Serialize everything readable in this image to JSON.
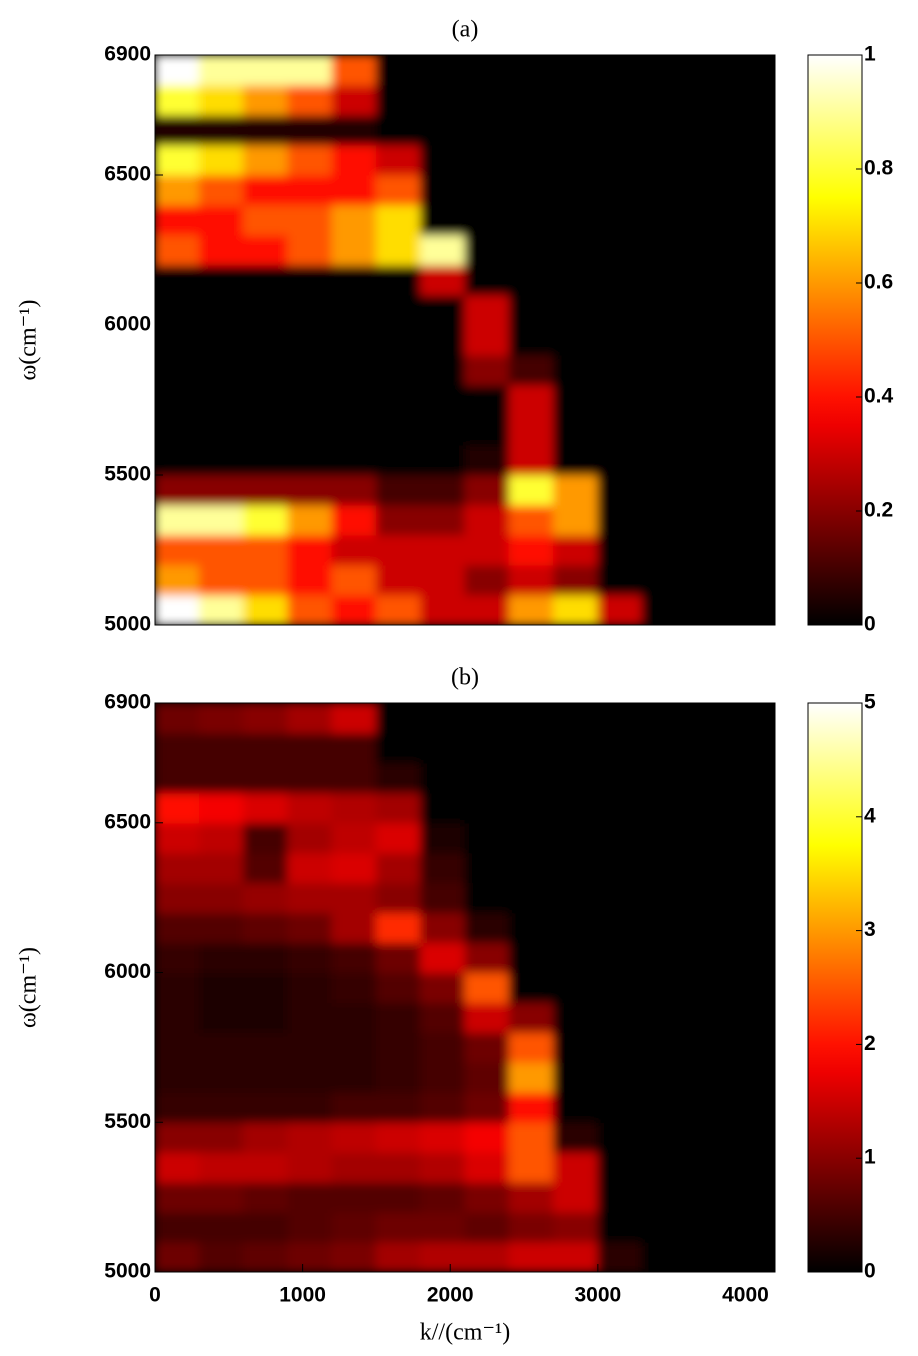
{
  "chart_data": [
    {
      "type": "heatmap",
      "title": "(a)",
      "y_label": "ω(cm⁻¹)",
      "colormap": "hot",
      "x": [
        150,
        450,
        750,
        1050,
        1350,
        1650,
        1950,
        2250,
        2550,
        2850,
        3150,
        3450,
        3750,
        4050
      ],
      "y": [
        5050,
        5150,
        5250,
        5350,
        5450,
        5550,
        5650,
        5750,
        5850,
        5950,
        6050,
        6150,
        6250,
        6350,
        6450,
        6550,
        6650,
        6750,
        6850
      ],
      "z": [
        [
          1,
          0.9,
          0.7,
          0.5,
          0.4,
          0.5,
          0.3,
          0.3,
          0.6,
          0.7,
          0.3,
          0,
          0,
          0
        ],
        [
          0.6,
          0.5,
          0.5,
          0.4,
          0.5,
          0.3,
          0.3,
          0.2,
          0.3,
          0.2,
          0,
          0,
          0,
          0
        ],
        [
          0.5,
          0.5,
          0.5,
          0.4,
          0.3,
          0.3,
          0.3,
          0.3,
          0.4,
          0.3,
          0,
          0,
          0,
          0
        ],
        [
          0.9,
          0.9,
          0.8,
          0.6,
          0.4,
          0.2,
          0.2,
          0.3,
          0.5,
          0.6,
          0,
          0,
          0,
          0
        ],
        [
          0.2,
          0.2,
          0.2,
          0.2,
          0.2,
          0.1,
          0.1,
          0.2,
          0.8,
          0.6,
          0,
          0,
          0,
          0
        ],
        [
          0,
          0,
          0,
          0,
          0,
          0,
          0,
          0.05,
          0.3,
          0,
          0,
          0,
          0,
          0
        ],
        [
          0,
          0,
          0,
          0,
          0,
          0,
          0,
          0,
          0.3,
          0,
          0,
          0,
          0,
          0
        ],
        [
          0,
          0,
          0,
          0,
          0,
          0,
          0,
          0,
          0.3,
          0,
          0,
          0,
          0,
          0
        ],
        [
          0,
          0,
          0,
          0,
          0,
          0,
          0,
          0.2,
          0.1,
          0,
          0,
          0,
          0,
          0
        ],
        [
          0,
          0,
          0,
          0,
          0,
          0,
          0,
          0.3,
          0,
          0,
          0,
          0,
          0,
          0
        ],
        [
          0,
          0,
          0,
          0,
          0,
          0,
          0,
          0.3,
          0,
          0,
          0,
          0,
          0,
          0
        ],
        [
          0,
          0,
          0,
          0,
          0,
          0,
          0.3,
          0,
          0,
          0,
          0,
          0,
          0,
          0
        ],
        [
          0.5,
          0.4,
          0.4,
          0.5,
          0.6,
          0.7,
          0.9,
          0,
          0,
          0,
          0,
          0,
          0,
          0
        ],
        [
          0.4,
          0.4,
          0.5,
          0.5,
          0.6,
          0.7,
          0,
          0,
          0,
          0,
          0,
          0,
          0,
          0
        ],
        [
          0.6,
          0.5,
          0.4,
          0.4,
          0.4,
          0.5,
          0,
          0,
          0,
          0,
          0,
          0,
          0,
          0
        ],
        [
          0.8,
          0.7,
          0.6,
          0.5,
          0.4,
          0.3,
          0,
          0,
          0,
          0,
          0,
          0,
          0,
          0
        ],
        [
          0.05,
          0.05,
          0.05,
          0.05,
          0.05,
          0,
          0,
          0,
          0,
          0,
          0,
          0,
          0,
          0
        ],
        [
          0.8,
          0.7,
          0.6,
          0.5,
          0.3,
          0,
          0,
          0,
          0,
          0,
          0,
          0,
          0,
          0
        ],
        [
          1,
          0.9,
          0.9,
          0.9,
          0.5,
          0,
          0,
          0,
          0,
          0,
          0,
          0,
          0,
          0
        ]
      ],
      "xlim": [
        0,
        4200
      ],
      "ylim": [
        5000,
        6900
      ],
      "yticks": [
        5000,
        5500,
        6000,
        6500,
        6900
      ],
      "clim": [
        0,
        1
      ],
      "cticks": [
        0,
        0.2,
        0.4,
        0.6,
        0.8,
        1
      ]
    },
    {
      "type": "heatmap",
      "title": "(b)",
      "x_label": "k//(cm⁻¹)",
      "y_label": "ω(cm⁻¹)",
      "colormap": "hot",
      "x": [
        150,
        450,
        750,
        1050,
        1350,
        1650,
        1950,
        2250,
        2550,
        2850,
        3150,
        3450,
        3750,
        4050
      ],
      "y": [
        5050,
        5150,
        5250,
        5350,
        5450,
        5550,
        5650,
        5750,
        5850,
        5950,
        6050,
        6150,
        6250,
        6350,
        6450,
        6550,
        6650,
        6750,
        6850
      ],
      "z": [
        [
          0.8,
          0.6,
          0.7,
          0.8,
          0.9,
          1.2,
          1.3,
          1.3,
          1.5,
          1.5,
          0.3,
          0,
          0,
          0
        ],
        [
          0.5,
          0.5,
          0.5,
          0.6,
          0.7,
          0.8,
          0.8,
          0.7,
          0.9,
          1.0,
          0,
          0,
          0,
          0
        ],
        [
          0.8,
          0.8,
          0.7,
          0.6,
          0.6,
          0.6,
          0.7,
          0.9,
          1.2,
          1.5,
          0,
          0,
          0,
          0
        ],
        [
          1.5,
          1.4,
          1.4,
          1.3,
          1.2,
          1.2,
          1.3,
          1.6,
          2.5,
          1.5,
          0,
          0,
          0,
          0
        ],
        [
          1.0,
          1.0,
          1.2,
          1.3,
          1.4,
          1.5,
          1.6,
          1.8,
          2.5,
          0.3,
          0,
          0,
          0,
          0
        ],
        [
          0.4,
          0.4,
          0.4,
          0.4,
          0.5,
          0.5,
          0.6,
          0.8,
          2.0,
          0,
          0,
          0,
          0,
          0
        ],
        [
          0.3,
          0.3,
          0.3,
          0.3,
          0.3,
          0.4,
          0.5,
          0.7,
          3.0,
          0,
          0,
          0,
          0,
          0
        ],
        [
          0.3,
          0.3,
          0.3,
          0.3,
          0.3,
          0.4,
          0.5,
          0.8,
          2.5,
          0,
          0,
          0,
          0,
          0
        ],
        [
          0.3,
          0.2,
          0.2,
          0.3,
          0.3,
          0.4,
          0.6,
          1.5,
          1.0,
          0,
          0,
          0,
          0,
          0
        ],
        [
          0.3,
          0.2,
          0.2,
          0.3,
          0.4,
          0.6,
          0.9,
          2.5,
          0,
          0,
          0,
          0,
          0,
          0
        ],
        [
          0.4,
          0.3,
          0.3,
          0.4,
          0.5,
          0.8,
          1.6,
          1.0,
          0,
          0,
          0,
          0,
          0,
          0
        ],
        [
          0.6,
          0.6,
          0.7,
          0.8,
          1.2,
          2.2,
          1.0,
          0.3,
          0,
          0,
          0,
          0,
          0,
          0
        ],
        [
          1.0,
          1.0,
          1.1,
          1.2,
          1.2,
          1.0,
          0.5,
          0,
          0,
          0,
          0,
          0,
          0,
          0
        ],
        [
          1.2,
          1.2,
          0.6,
          1.5,
          1.6,
          1.2,
          0.4,
          0,
          0,
          0,
          0,
          0,
          0,
          0
        ],
        [
          1.5,
          1.4,
          0.5,
          1.2,
          1.4,
          1.6,
          0.2,
          0,
          0,
          0,
          0,
          0,
          0,
          0
        ],
        [
          2.0,
          1.8,
          1.6,
          1.4,
          1.3,
          1.2,
          0,
          0,
          0,
          0,
          0,
          0,
          0,
          0
        ],
        [
          0.5,
          0.5,
          0.5,
          0.5,
          0.5,
          0.3,
          0,
          0,
          0,
          0,
          0,
          0,
          0,
          0
        ],
        [
          0.5,
          0.5,
          0.5,
          0.5,
          0.5,
          0,
          0,
          0,
          0,
          0,
          0,
          0,
          0,
          0
        ],
        [
          0.8,
          0.9,
          1.0,
          1.2,
          1.5,
          0,
          0,
          0,
          0,
          0,
          0,
          0,
          0,
          0
        ]
      ],
      "xlim": [
        0,
        4200
      ],
      "ylim": [
        5000,
        6900
      ],
      "xticks": [
        0,
        1000,
        2000,
        3000,
        4000
      ],
      "yticks": [
        5000,
        5500,
        6000,
        6500,
        6900
      ],
      "clim": [
        0,
        5
      ],
      "cticks": [
        0,
        1,
        2,
        3,
        4,
        5
      ]
    }
  ]
}
